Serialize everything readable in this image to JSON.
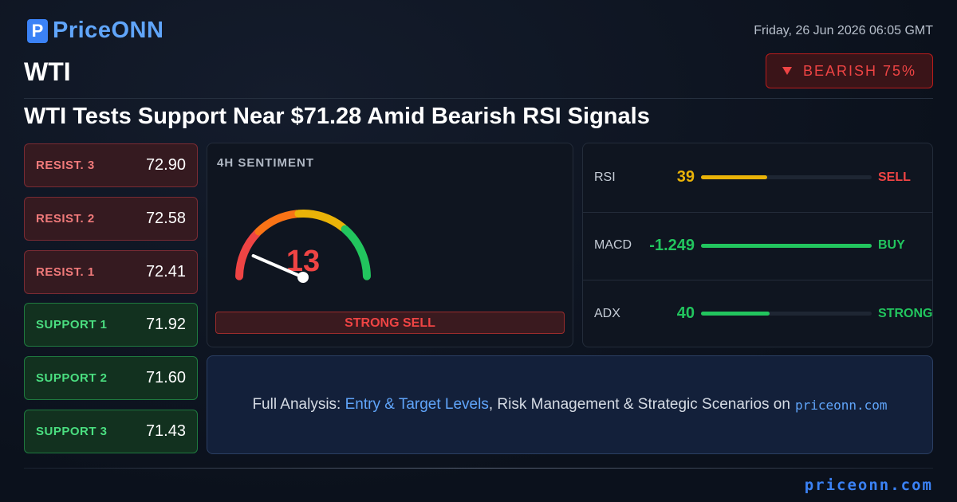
{
  "header": {
    "brand": "PriceONN",
    "date": "Friday, 26 Jun 2026 06:05 GMT",
    "symbol": "WTI",
    "badge": "BEARISH 75%",
    "headline": "WTI Tests Support Near $71.28 Amid Bearish RSI Signals"
  },
  "levels": {
    "resistance": [
      {
        "label": "RESIST. 3",
        "value": "72.90"
      },
      {
        "label": "RESIST. 2",
        "value": "72.58"
      },
      {
        "label": "RESIST. 1",
        "value": "72.41"
      }
    ],
    "support": [
      {
        "label": "SUPPORT 1",
        "value": "71.92"
      },
      {
        "label": "SUPPORT 2",
        "value": "71.60"
      },
      {
        "label": "SUPPORT 3",
        "value": "71.43"
      }
    ]
  },
  "sentiment": {
    "title": "4H SENTIMENT",
    "score": 13,
    "range": [
      0,
      100
    ],
    "verdict": "STRONG SELL"
  },
  "indicators": [
    {
      "name": "RSI",
      "value": 39,
      "range": [
        0,
        100
      ],
      "signal": "SELL",
      "color": "#eab308",
      "signal_color": "#ef4444"
    },
    {
      "name": "MACD",
      "value": -1.249,
      "signal": "BUY",
      "color": "#22c55e",
      "signal_color": "#22c55e"
    },
    {
      "name": "ADX",
      "value": 40,
      "range": [
        0,
        100
      ],
      "signal": "STRONG",
      "color": "#22c55e",
      "signal_color": "#22c55e"
    }
  ],
  "cta": {
    "lead": "Full Analysis:",
    "link": "Entry & Target Levels",
    "middle": ", Risk Management & Strategic Scenarios on",
    "site": "priceonn.com"
  },
  "footer": {
    "site": "priceonn.com"
  }
}
